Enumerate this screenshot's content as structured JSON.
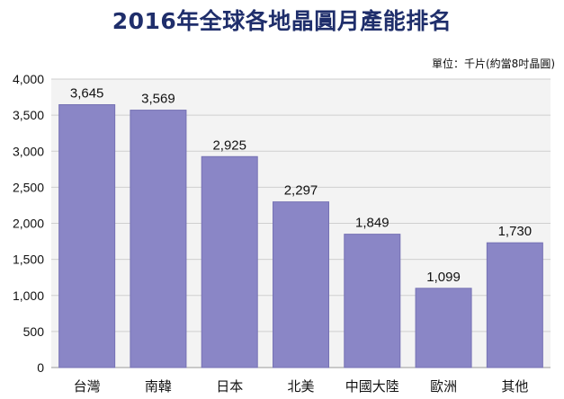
{
  "header": {
    "title": "2016年全球各地晶圓月產能排名",
    "unit_note": "單位：千片(約當8吋晶圓)"
  },
  "colors": {
    "bar": "#8a86c6",
    "plot_bg": "#f3f3f3",
    "grid": "#cfcfcf"
  },
  "chart_data": {
    "type": "bar",
    "title": "2016年全球各地晶圓月產能排名",
    "xlabel": "",
    "ylabel": "",
    "ylim": [
      0,
      4000
    ],
    "yticks": [
      0,
      500,
      1000,
      1500,
      2000,
      2500,
      3000,
      3500,
      4000
    ],
    "ytick_labels": [
      "0",
      "500",
      "1,000",
      "1,500",
      "2,000",
      "2,500",
      "3,000",
      "3,500",
      "4,000"
    ],
    "grid": true,
    "categories": [
      "台灣",
      "南韓",
      "日本",
      "北美",
      "中國大陸",
      "歐洲",
      "其他"
    ],
    "values": [
      3645,
      3569,
      2925,
      2297,
      1849,
      1099,
      1730
    ],
    "data_labels": [
      "3,645",
      "3,569",
      "2,925",
      "2,297",
      "1,849",
      "1,099",
      "1,730"
    ]
  }
}
